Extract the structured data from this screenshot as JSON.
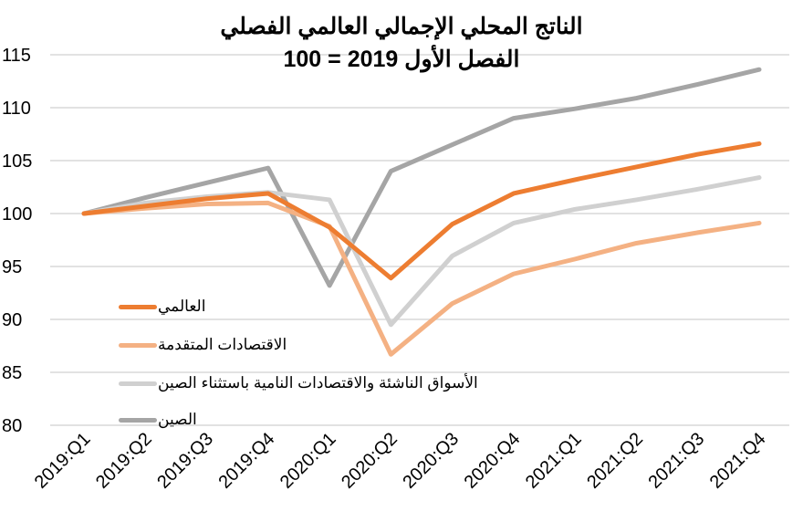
{
  "chart_data": {
    "type": "line",
    "title": "الناتج المحلي الإجمالي العالمي الفصلي",
    "subtitle": "الفصل الأول 2019 = 100",
    "xlabel": "",
    "ylabel": "",
    "ylim": [
      80,
      115
    ],
    "yticks": [
      "80",
      "85",
      "90",
      "95",
      "100",
      "105",
      "110",
      "115"
    ],
    "grid": true,
    "legend_position": "bottom-left",
    "categories": [
      "2019:Q1",
      "2019:Q2",
      "2019:Q3",
      "2019:Q4",
      "2020:Q1",
      "2020:Q2",
      "2020:Q3",
      "2020:Q4",
      "2021:Q1",
      "2021:Q2",
      "2021:Q3",
      "2021:Q4"
    ],
    "series": [
      {
        "name": "العالمي",
        "color": "#ed7d31",
        "values": [
          100,
          100.7,
          101.4,
          101.9,
          98.7,
          93.9,
          99.0,
          101.9,
          103.2,
          104.4,
          105.6,
          106.6
        ]
      },
      {
        "name": "الاقتصادات المتقدمة",
        "color": "#f4b183",
        "values": [
          100,
          100.5,
          100.9,
          101.0,
          98.8,
          86.7,
          91.5,
          94.3,
          95.7,
          97.2,
          98.2,
          99.1
        ]
      },
      {
        "name": "الأسواق الناشئة والاقتصادات النامية باستثناء الصين",
        "color": "#d0d0d0",
        "values": [
          100,
          101.0,
          101.6,
          102.0,
          101.3,
          89.5,
          96.0,
          99.1,
          100.4,
          101.3,
          102.3,
          103.4
        ]
      },
      {
        "name": "الصين",
        "color": "#a5a5a5",
        "values": [
          100,
          101.5,
          102.9,
          104.3,
          93.2,
          104.0,
          106.5,
          109.0,
          109.9,
          110.9,
          112.2,
          113.6
        ]
      }
    ]
  }
}
